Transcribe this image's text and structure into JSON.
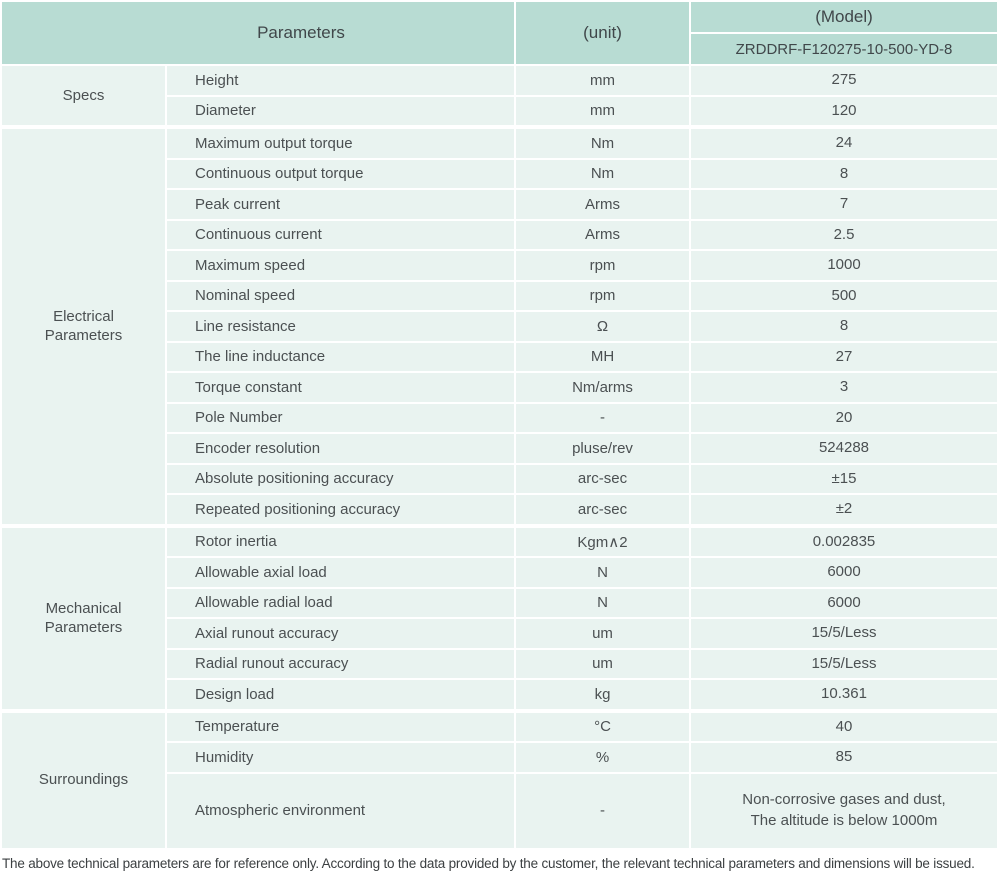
{
  "colors": {
    "header_bg": "#b8dcd3",
    "cell_bg": "#e9f3f0",
    "text": "#4b5052"
  },
  "header": {
    "parameters_label": "Parameters",
    "unit_label": "(unit)",
    "model_label": "(Model)",
    "model_value": "ZRDDRF-F120275-10-500-YD-8"
  },
  "sections": [
    {
      "label": "Specs",
      "rows": [
        {
          "name": "Height",
          "unit": "mm",
          "value": "275"
        },
        {
          "name": "Diameter",
          "unit": "mm",
          "value": "120"
        }
      ]
    },
    {
      "label": "Electrical Parameters",
      "rows": [
        {
          "name": "Maximum output torque",
          "unit": "Nm",
          "value": "24"
        },
        {
          "name": "Continuous output torque",
          "unit": "Nm",
          "value": "8"
        },
        {
          "name": "Peak current",
          "unit": "Arms",
          "value": "7"
        },
        {
          "name": "Continuous current",
          "unit": "Arms",
          "value": "2.5"
        },
        {
          "name": "Maximum speed",
          "unit": "rpm",
          "value": "1000"
        },
        {
          "name": "Nominal speed",
          "unit": "rpm",
          "value": "500"
        },
        {
          "name": "Line resistance",
          "unit": "Ω",
          "value": "8"
        },
        {
          "name": "The line inductance",
          "unit": "MH",
          "value": "27"
        },
        {
          "name": "Torque constant",
          "unit": "Nm/arms",
          "value": "3"
        },
        {
          "name": "Pole Number",
          "unit": "-",
          "value": "20"
        },
        {
          "name": "Encoder resolution",
          "unit": "pluse/rev",
          "value": "524288"
        },
        {
          "name": "Absolute positioning accuracy",
          "unit": "arc-sec",
          "value": "±15"
        },
        {
          "name": "Repeated positioning accuracy",
          "unit": "arc-sec",
          "value": "±2"
        }
      ]
    },
    {
      "label": "Mechanical Parameters",
      "rows": [
        {
          "name": "Rotor inertia",
          "unit": "Kgm∧2",
          "value": "0.002835"
        },
        {
          "name": "Allowable axial load",
          "unit": "N",
          "value": "6000"
        },
        {
          "name": "Allowable radial load",
          "unit": "N",
          "value": "6000"
        },
        {
          "name": "Axial runout accuracy",
          "unit": "um",
          "value": "15/5/Less"
        },
        {
          "name": "Radial runout accuracy",
          "unit": "um",
          "value": "15/5/Less"
        },
        {
          "name": "Design load",
          "unit": "kg",
          "value": "10.361"
        }
      ]
    },
    {
      "label": "Surroundings",
      "rows": [
        {
          "name": "Temperature",
          "unit": "°C",
          "value": "40"
        },
        {
          "name": "Humidity",
          "unit": "%",
          "value": "85"
        },
        {
          "name": "Atmospheric environment",
          "unit": "-",
          "value": "Non-corrosive gases and dust,\nThe altitude is below 1000m"
        }
      ]
    }
  ],
  "footer": {
    "note": "The above technical parameters are for reference only. According to the data provided by the customer, the relevant technical parameters and dimensions will be issued."
  }
}
